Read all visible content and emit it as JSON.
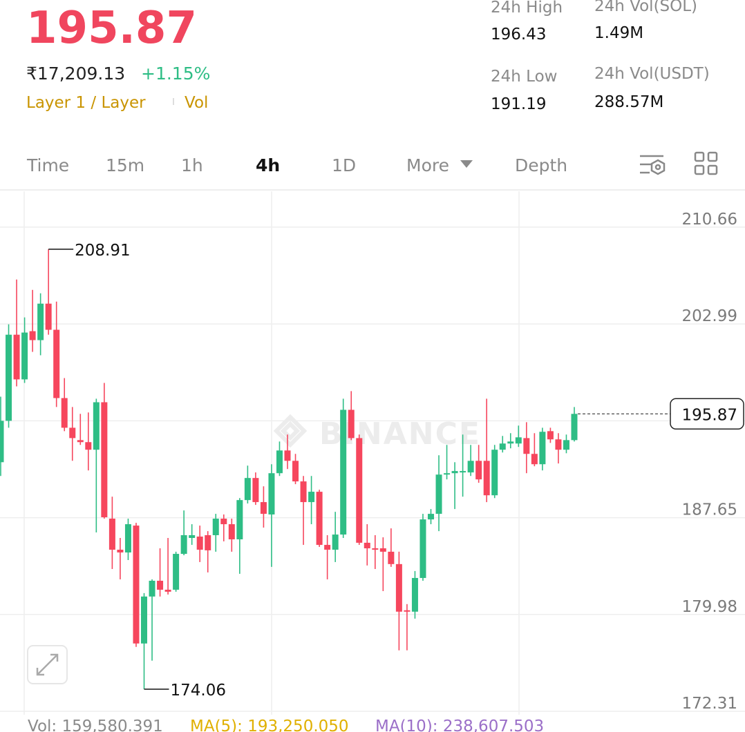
{
  "header": {
    "price": "195.87",
    "fiat": "₹17,209.13",
    "change": "+1.15%",
    "tags": [
      "Layer 1 / Layer",
      "Vol"
    ]
  },
  "stats": [
    {
      "label": "24h High",
      "value": "196.43"
    },
    {
      "label": "24h Vol(SOL)",
      "value": "1.49M"
    },
    {
      "label": "24h Low",
      "value": "191.19"
    },
    {
      "label": "24h Vol(USDT)",
      "value": "288.57M"
    }
  ],
  "tabs": [
    "Time",
    "15m",
    "1h",
    "4h",
    "1D",
    "More",
    "Depth"
  ],
  "active_tab": 3,
  "chart_data": {
    "type": "candlestick",
    "watermark": "BINANCE",
    "up_color": "#2ebd85",
    "down_color": "#f6465d",
    "ylim": [
      172.31,
      213.5
    ],
    "yticks": [
      210.66,
      202.99,
      195.32,
      187.65,
      179.98,
      172.31
    ],
    "grid": true,
    "max_label": 208.91,
    "min_label": 174.06,
    "current_price": 195.87,
    "open": [
      192.04,
      195.32,
      202.14,
      198.6,
      202.42,
      201.71,
      204.6,
      202.53,
      197.12,
      194.77,
      193.79,
      193.63,
      193.03,
      196.79,
      187.57,
      185.11,
      184.89,
      187.02,
      177.68,
      181.4,
      182.65,
      181.94,
      181.94,
      184.78,
      186.04,
      186.15,
      186.26,
      186.26,
      187.57,
      187.13,
      185.93,
      189.04,
      190.79,
      188.88,
      187.9,
      191.17,
      192.97,
      192.15,
      190.52,
      188.88,
      189.7,
      185.49,
      185.11,
      186.31,
      196.19,
      193.95,
      185.66,
      185.22,
      185.22,
      184.95,
      183.97,
      180.31,
      180.2,
      182.87,
      187.51,
      187.95,
      191.06,
      191.17,
      191.23,
      191.23,
      192.15,
      192.15,
      189.42,
      193.03,
      193.52,
      193.52,
      193.95,
      192.7,
      191.88,
      194.5,
      193.85,
      193.03,
      193.79
    ],
    "high": [
      197.23,
      202.96,
      206.51,
      203.51,
      205.69,
      205.42,
      208.91,
      204.76,
      198.7,
      196.41,
      195.87,
      195.98,
      197.07,
      198.32,
      189.31,
      186.04,
      187.57,
      187.24,
      181.67,
      182.76,
      185.22,
      186.04,
      184.95,
      188.22,
      187.13,
      187.02,
      186.58,
      187.95,
      187.9,
      187.57,
      189.2,
      191.77,
      191.23,
      190.13,
      191.88,
      193.68,
      194.23,
      192.7,
      190.95,
      190.95,
      189.86,
      186.26,
      188.11,
      197.07,
      197.67,
      194.23,
      187.13,
      186.26,
      186.09,
      186.8,
      184.95,
      180.8,
      183.42,
      187.95,
      188.33,
      192.59,
      193.41,
      192.04,
      194.23,
      193.41,
      193.41,
      197.07,
      193.41,
      194.12,
      194.34,
      194.94,
      195.21,
      194.34,
      194.77,
      194.77,
      194.34,
      194.23,
      196.41
    ],
    "low": [
      190.95,
      194.77,
      198.05,
      198.32,
      200.78,
      200.51,
      202.14,
      196.41,
      194.5,
      192.15,
      193.41,
      191.39,
      186.48,
      187.57,
      183.58,
      182.76,
      184.29,
      177.41,
      174.06,
      176.32,
      181.4,
      181.56,
      181.78,
      184.67,
      185.49,
      184.13,
      183.31,
      184.95,
      185.77,
      184.95,
      183.2,
      188.77,
      188.66,
      186.86,
      183.75,
      190.95,
      191.5,
      190.3,
      185.49,
      187.13,
      185.33,
      182.76,
      184.13,
      186.04,
      193.79,
      185.49,
      183.86,
      183.58,
      181.83,
      183.75,
      177.14,
      177.14,
      179.65,
      182.65,
      187.13,
      186.58,
      190.68,
      188.33,
      189.31,
      190.95,
      190.41,
      188.88,
      189.2,
      192.81,
      193.14,
      193.25,
      191.17,
      191.72,
      191.39,
      193.57,
      191.94,
      192.75,
      193.68
    ],
    "close": [
      195.32,
      202.14,
      198.6,
      202.31,
      201.71,
      204.6,
      202.53,
      197.12,
      194.77,
      193.95,
      193.63,
      193.03,
      196.79,
      187.68,
      185.11,
      184.89,
      187.13,
      177.68,
      181.4,
      182.65,
      181.94,
      181.78,
      184.78,
      186.26,
      186.26,
      185.11,
      185.06,
      187.57,
      187.13,
      185.93,
      189.04,
      190.79,
      188.88,
      187.95,
      191.17,
      192.97,
      192.15,
      190.52,
      188.88,
      189.7,
      185.49,
      185.11,
      186.31,
      196.19,
      193.95,
      185.66,
      185.22,
      185.11,
      184.95,
      183.97,
      180.2,
      180.2,
      182.87,
      187.51,
      187.95,
      191.06,
      191.17,
      191.34,
      191.34,
      192.15,
      190.68,
      189.42,
      193.03,
      193.52,
      193.68,
      194.01,
      192.7,
      191.88,
      194.45,
      193.85,
      193.03,
      193.79,
      195.87
    ]
  },
  "volume_info": [
    "Vol: 159,580.391",
    "MA(5): 193,250.050",
    "MA(10): 238,607.503"
  ]
}
